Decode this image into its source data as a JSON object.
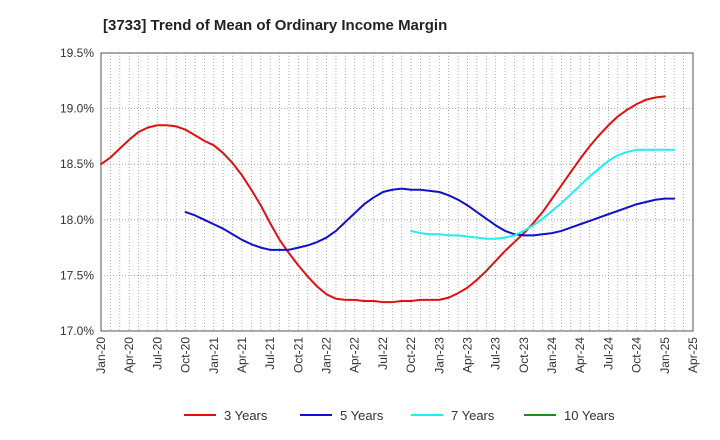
{
  "chart_data": {
    "type": "line",
    "title": "[3733]  Trend of Mean of Ordinary Income Margin",
    "xlabel": "",
    "ylabel": "",
    "x_ticks": [
      "Jan-20",
      "Apr-20",
      "Jul-20",
      "Oct-20",
      "Jan-21",
      "Apr-21",
      "Jul-21",
      "Oct-21",
      "Jan-22",
      "Apr-22",
      "Jul-22",
      "Oct-22",
      "Jan-23",
      "Apr-23",
      "Jul-23",
      "Oct-23",
      "Jan-24",
      "Apr-24",
      "Jul-24",
      "Oct-24",
      "Jan-25",
      "Apr-25"
    ],
    "y_ticks": [
      "17.0%",
      "17.5%",
      "18.0%",
      "18.5%",
      "19.0%",
      "19.5%"
    ],
    "ylim": [
      17.0,
      19.5
    ],
    "grid": true,
    "legend_position": "bottom",
    "series": [
      {
        "name": "3 Years",
        "color": "#dd1111",
        "points": [
          [
            "Jan-20",
            18.5
          ],
          [
            "Feb-20",
            18.56
          ],
          [
            "Mar-20",
            18.64
          ],
          [
            "Apr-20",
            18.72
          ],
          [
            "May-20",
            18.79
          ],
          [
            "Jun-20",
            18.83
          ],
          [
            "Jul-20",
            18.85
          ],
          [
            "Aug-20",
            18.85
          ],
          [
            "Sep-20",
            18.84
          ],
          [
            "Oct-20",
            18.81
          ],
          [
            "Nov-20",
            18.76
          ],
          [
            "Dec-20",
            18.71
          ],
          [
            "Jan-21",
            18.67
          ],
          [
            "Feb-21",
            18.6
          ],
          [
            "Mar-21",
            18.51
          ],
          [
            "Apr-21",
            18.4
          ],
          [
            "May-21",
            18.27
          ],
          [
            "Jun-21",
            18.13
          ],
          [
            "Jul-21",
            17.97
          ],
          [
            "Aug-21",
            17.82
          ],
          [
            "Sep-21",
            17.7
          ],
          [
            "Oct-21",
            17.59
          ],
          [
            "Nov-21",
            17.49
          ],
          [
            "Dec-21",
            17.4
          ],
          [
            "Jan-22",
            17.33
          ],
          [
            "Feb-22",
            17.29
          ],
          [
            "Mar-22",
            17.28
          ],
          [
            "Apr-22",
            17.28
          ],
          [
            "May-22",
            17.27
          ],
          [
            "Jun-22",
            17.27
          ],
          [
            "Jul-22",
            17.26
          ],
          [
            "Aug-22",
            17.26
          ],
          [
            "Sep-22",
            17.27
          ],
          [
            "Oct-22",
            17.27
          ],
          [
            "Nov-22",
            17.28
          ],
          [
            "Dec-22",
            17.28
          ],
          [
            "Jan-23",
            17.28
          ],
          [
            "Feb-23",
            17.3
          ],
          [
            "Mar-23",
            17.34
          ],
          [
            "Apr-23",
            17.39
          ],
          [
            "May-23",
            17.46
          ],
          [
            "Jun-23",
            17.54
          ],
          [
            "Jul-23",
            17.63
          ],
          [
            "Aug-23",
            17.72
          ],
          [
            "Sep-23",
            17.8
          ],
          [
            "Oct-23",
            17.88
          ],
          [
            "Nov-23",
            17.97
          ],
          [
            "Dec-23",
            18.07
          ],
          [
            "Jan-24",
            18.19
          ],
          [
            "Feb-24",
            18.31
          ],
          [
            "Mar-24",
            18.43
          ],
          [
            "Apr-24",
            18.55
          ],
          [
            "May-24",
            18.66
          ],
          [
            "Jun-24",
            18.76
          ],
          [
            "Jul-24",
            18.85
          ],
          [
            "Aug-24",
            18.93
          ],
          [
            "Sep-24",
            18.99
          ],
          [
            "Oct-24",
            19.04
          ],
          [
            "Nov-24",
            19.08
          ],
          [
            "Dec-24",
            19.1
          ],
          [
            "Jan-25",
            19.11
          ]
        ]
      },
      {
        "name": "5 Years",
        "color": "#1111cc",
        "points": [
          [
            "Oct-20",
            18.07
          ],
          [
            "Nov-20",
            18.04
          ],
          [
            "Dec-20",
            18.0
          ],
          [
            "Jan-21",
            17.96
          ],
          [
            "Feb-21",
            17.92
          ],
          [
            "Mar-21",
            17.87
          ],
          [
            "Apr-21",
            17.82
          ],
          [
            "May-21",
            17.78
          ],
          [
            "Jun-21",
            17.75
          ],
          [
            "Jul-21",
            17.73
          ],
          [
            "Aug-21",
            17.73
          ],
          [
            "Sep-21",
            17.73
          ],
          [
            "Oct-21",
            17.75
          ],
          [
            "Nov-21",
            17.77
          ],
          [
            "Dec-21",
            17.8
          ],
          [
            "Jan-22",
            17.84
          ],
          [
            "Feb-22",
            17.9
          ],
          [
            "Mar-22",
            17.98
          ],
          [
            "Apr-22",
            18.06
          ],
          [
            "May-22",
            18.14
          ],
          [
            "Jun-22",
            18.2
          ],
          [
            "Jul-22",
            18.25
          ],
          [
            "Aug-22",
            18.27
          ],
          [
            "Sep-22",
            18.28
          ],
          [
            "Oct-22",
            18.27
          ],
          [
            "Nov-22",
            18.27
          ],
          [
            "Dec-22",
            18.26
          ],
          [
            "Jan-23",
            18.25
          ],
          [
            "Feb-23",
            18.22
          ],
          [
            "Mar-23",
            18.18
          ],
          [
            "Apr-23",
            18.13
          ],
          [
            "May-23",
            18.07
          ],
          [
            "Jun-23",
            18.01
          ],
          [
            "Jul-23",
            17.95
          ],
          [
            "Aug-23",
            17.9
          ],
          [
            "Sep-23",
            17.87
          ],
          [
            "Oct-23",
            17.86
          ],
          [
            "Nov-23",
            17.86
          ],
          [
            "Dec-23",
            17.87
          ],
          [
            "Jan-24",
            17.88
          ],
          [
            "Feb-24",
            17.9
          ],
          [
            "Mar-24",
            17.93
          ],
          [
            "Apr-24",
            17.96
          ],
          [
            "May-24",
            17.99
          ],
          [
            "Jun-24",
            18.02
          ],
          [
            "Jul-24",
            18.05
          ],
          [
            "Aug-24",
            18.08
          ],
          [
            "Sep-24",
            18.11
          ],
          [
            "Oct-24",
            18.14
          ],
          [
            "Nov-24",
            18.16
          ],
          [
            "Dec-24",
            18.18
          ],
          [
            "Jan-25",
            18.19
          ],
          [
            "Feb-25",
            18.19
          ]
        ]
      },
      {
        "name": "7 Years",
        "color": "#22eeee",
        "points": [
          [
            "Oct-22",
            17.9
          ],
          [
            "Nov-22",
            17.88
          ],
          [
            "Dec-22",
            17.87
          ],
          [
            "Jan-23",
            17.87
          ],
          [
            "Feb-23",
            17.86
          ],
          [
            "Mar-23",
            17.86
          ],
          [
            "Apr-23",
            17.85
          ],
          [
            "May-23",
            17.84
          ],
          [
            "Jun-23",
            17.83
          ],
          [
            "Jul-23",
            17.83
          ],
          [
            "Aug-23",
            17.84
          ],
          [
            "Sep-23",
            17.86
          ],
          [
            "Oct-23",
            17.9
          ],
          [
            "Nov-23",
            17.95
          ],
          [
            "Dec-23",
            18.01
          ],
          [
            "Jan-24",
            18.08
          ],
          [
            "Feb-24",
            18.15
          ],
          [
            "Mar-24",
            18.23
          ],
          [
            "Apr-24",
            18.31
          ],
          [
            "May-24",
            18.39
          ],
          [
            "Jun-24",
            18.46
          ],
          [
            "Jul-24",
            18.53
          ],
          [
            "Aug-24",
            18.58
          ],
          [
            "Sep-24",
            18.61
          ],
          [
            "Oct-24",
            18.63
          ],
          [
            "Nov-24",
            18.63
          ],
          [
            "Dec-24",
            18.63
          ],
          [
            "Jan-25",
            18.63
          ],
          [
            "Feb-25",
            18.63
          ]
        ]
      },
      {
        "name": "10 Years",
        "color": "#228822",
        "points": []
      }
    ]
  }
}
